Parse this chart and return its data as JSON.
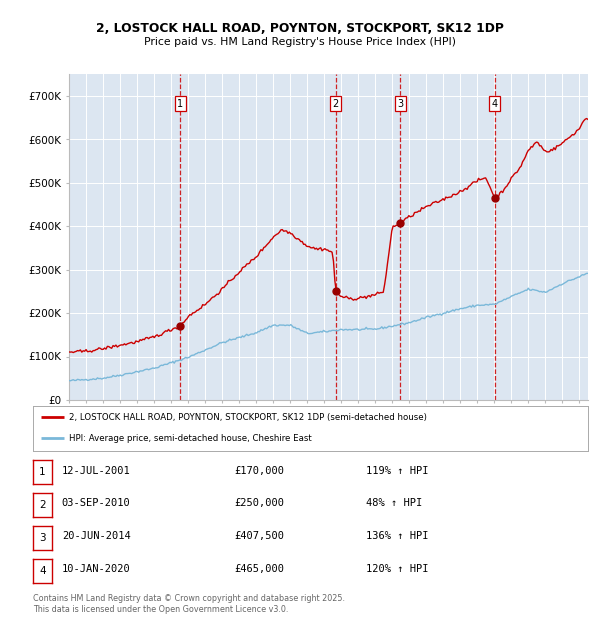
{
  "title1": "2, LOSTOCK HALL ROAD, POYNTON, STOCKPORT, SK12 1DP",
  "title2": "Price paid vs. HM Land Registry's House Price Index (HPI)",
  "background_color": "#dce6f1",
  "plot_bg_color": "#dce6f1",
  "fig_bg_color": "#ffffff",
  "red_line_color": "#cc0000",
  "blue_line_color": "#7ab8d9",
  "sale_marker_color": "#990000",
  "vline_color": "#cc0000",
  "legend_label_red": "2, LOSTOCK HALL ROAD, POYNTON, STOCKPORT, SK12 1DP (semi-detached house)",
  "legend_label_blue": "HPI: Average price, semi-detached house, Cheshire East",
  "footer": "Contains HM Land Registry data © Crown copyright and database right 2025.\nThis data is licensed under the Open Government Licence v3.0.",
  "sales": [
    {
      "num": 1,
      "date_x": 2001.54,
      "price": 170000,
      "label": "12-JUL-2001",
      "pct": "119%",
      "dir": "↑"
    },
    {
      "num": 2,
      "date_x": 2010.67,
      "price": 250000,
      "label": "03-SEP-2010",
      "pct": "48%",
      "dir": "↑"
    },
    {
      "num": 3,
      "date_x": 2014.47,
      "price": 407500,
      "label": "20-JUN-2014",
      "pct": "136%",
      "dir": "↑"
    },
    {
      "num": 4,
      "date_x": 2020.03,
      "price": 465000,
      "label": "10-JAN-2020",
      "pct": "120%",
      "dir": "↑"
    }
  ],
  "ylim": [
    0,
    750000
  ],
  "xlim": [
    1995.0,
    2025.5
  ],
  "yticks": [
    0,
    100000,
    200000,
    300000,
    400000,
    500000,
    600000,
    700000
  ],
  "ytick_labels": [
    "£0",
    "£100K",
    "£200K",
    "£300K",
    "£400K",
    "£500K",
    "£600K",
    "£700K"
  ]
}
